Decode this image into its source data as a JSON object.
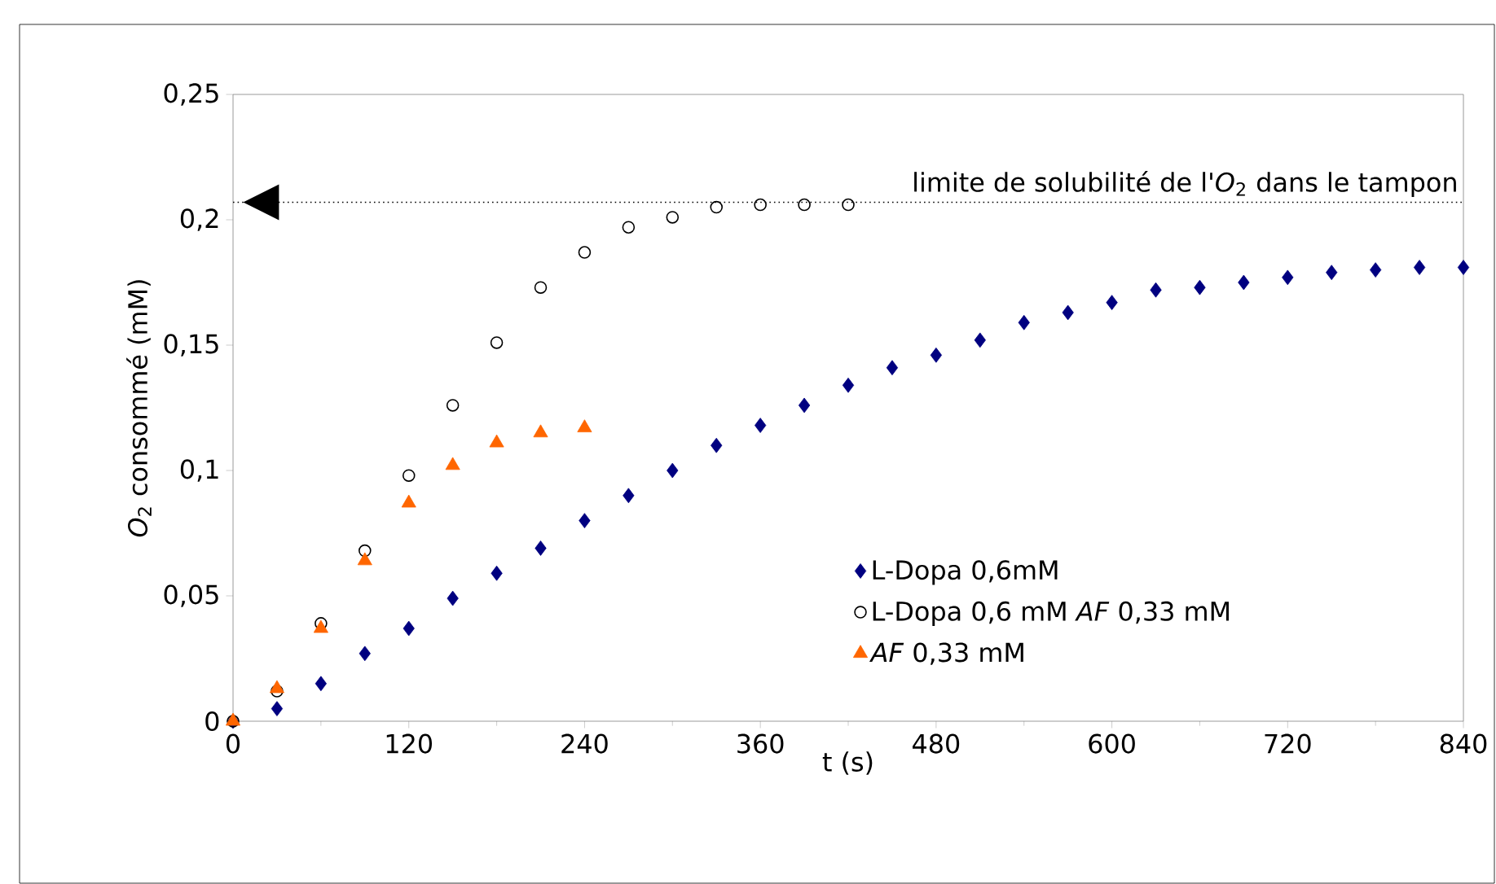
{
  "chart_data": {
    "type": "scatter",
    "xlabel": "t (s)",
    "ylabel": "*O*$_{2}$ consommé (mM)",
    "xlim": [
      0,
      840
    ],
    "xticks": [
      0,
      120,
      240,
      360,
      480,
      600,
      720,
      840
    ],
    "ylim": [
      0,
      0.25
    ],
    "yticks": [
      {
        "value": 0,
        "label": "0"
      },
      {
        "value": 0.05,
        "label": "0,05"
      },
      {
        "value": 0.1,
        "label": "0,1"
      },
      {
        "value": 0.15,
        "label": "0,15"
      },
      {
        "value": 0.2,
        "label": "0,2"
      },
      {
        "value": 0.25,
        "label": "0,25"
      }
    ],
    "legend": "right",
    "grid": false,
    "ref_lines": [
      {
        "axis": "y",
        "value": 0.207,
        "label": "limite de solubilité de l'*O*$_{2}$ dans le tampon",
        "color": "#000000",
        "line_style": "dotted"
      }
    ],
    "series": [
      {
        "name": "L-Dopa 0,6mM",
        "color": "#000080",
        "marker": "diamond",
        "x": [
          0,
          30,
          60,
          90,
          120,
          150,
          180,
          210,
          240,
          270,
          300,
          330,
          360,
          390,
          420,
          450,
          480,
          510,
          540,
          570,
          600,
          630,
          660,
          690,
          720,
          750,
          780,
          810,
          840
        ],
        "values": [
          0,
          0.005,
          0.015,
          0.027,
          0.037,
          0.049,
          0.059,
          0.069,
          0.08,
          0.09,
          0.1,
          0.11,
          0.118,
          0.126,
          0.134,
          0.141,
          0.146,
          0.152,
          0.159,
          0.163,
          0.167,
          0.172,
          0.173,
          0.175,
          0.177,
          0.179,
          0.18,
          0.181,
          0.181
        ]
      },
      {
        "name": "L-Dopa 0,6 mM *AF* 0,33 mM",
        "color": "#000000",
        "marker": "circle",
        "x": [
          0,
          30,
          60,
          90,
          120,
          150,
          180,
          210,
          240,
          270,
          300,
          330,
          360,
          390,
          420
        ],
        "values": [
          0,
          0.012,
          0.039,
          0.068,
          0.098,
          0.126,
          0.151,
          0.173,
          0.187,
          0.197,
          0.201,
          0.205,
          0.206,
          0.206,
          0.206
        ]
      },
      {
        "name": "*AF* 0,33 mM",
        "color": "#ff6600",
        "marker": "triangle",
        "x": [
          0,
          30,
          60,
          90,
          120,
          150,
          180,
          210,
          240
        ],
        "values": [
          0,
          0.013,
          0.037,
          0.064,
          0.087,
          0.102,
          0.111,
          0.115,
          0.117
        ]
      }
    ]
  }
}
